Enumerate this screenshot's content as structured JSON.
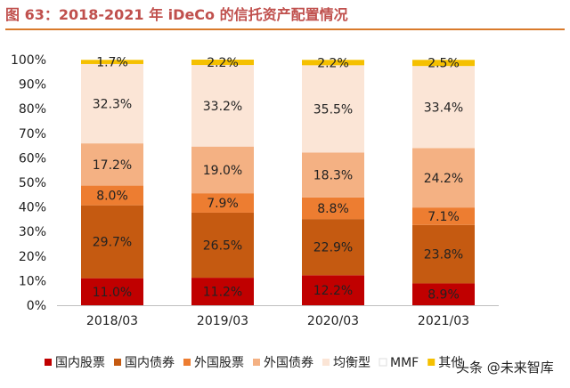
{
  "figure": {
    "title": "图 63：2018-2021 年 iDeCo 的信托资产配置情况",
    "watermark": "头条 @未来智库"
  },
  "colors": {
    "title": "#c0504d",
    "rule": "#d97a2b"
  },
  "chart_data": {
    "type": "bar",
    "stacked": true,
    "title": "图 63：2018-2021 年 iDeCo 的信托资产配置情况",
    "xlabel": "",
    "ylabel": "",
    "ylim": [
      0,
      100
    ],
    "y_ticks": [
      "0%",
      "10%",
      "20%",
      "30%",
      "40%",
      "50%",
      "60%",
      "70%",
      "80%",
      "90%",
      "100%"
    ],
    "grid": false,
    "legend_position": "bottom",
    "categories": [
      "2018/03",
      "2019/03",
      "2020/03",
      "2021/03"
    ],
    "series": [
      {
        "name": "国内股票",
        "color": "#c00000",
        "values": [
          11.0,
          11.2,
          12.2,
          8.9
        ],
        "labels": [
          "11.0%",
          "11.2%",
          "12.2%",
          "8.9%"
        ]
      },
      {
        "name": "国内债券",
        "color": "#c55a11",
        "values": [
          29.7,
          26.5,
          22.9,
          23.8
        ],
        "labels": [
          "29.7%",
          "26.5%",
          "22.9%",
          "23.8%"
        ]
      },
      {
        "name": "外国股票",
        "color": "#ed7d31",
        "values": [
          8.0,
          7.9,
          8.8,
          7.1
        ],
        "labels": [
          "8.0%",
          "7.9%",
          "8.8%",
          "7.1%"
        ]
      },
      {
        "name": "外国债券",
        "color": "#f4b183",
        "values": [
          17.2,
          19.0,
          18.3,
          24.2
        ],
        "labels": [
          "17.2%",
          "19.0%",
          "18.3%",
          "24.2%"
        ]
      },
      {
        "name": "均衡型",
        "color": "#fbe5d6",
        "values": [
          32.3,
          33.2,
          35.5,
          33.4
        ],
        "labels": [
          "32.3%",
          "33.2%",
          "35.5%",
          "33.4%"
        ]
      },
      {
        "name": "MMF",
        "color": "#ffffff",
        "values": [
          0.0,
          0.0,
          0.0,
          0.0
        ],
        "labels": [
          "",
          "",
          "",
          ""
        ]
      },
      {
        "name": "其他",
        "color": "#f5c000",
        "values": [
          1.7,
          2.2,
          2.2,
          2.5
        ],
        "labels": [
          "1.7%",
          "2.2%",
          "2.2%",
          "2.5%"
        ]
      }
    ]
  }
}
